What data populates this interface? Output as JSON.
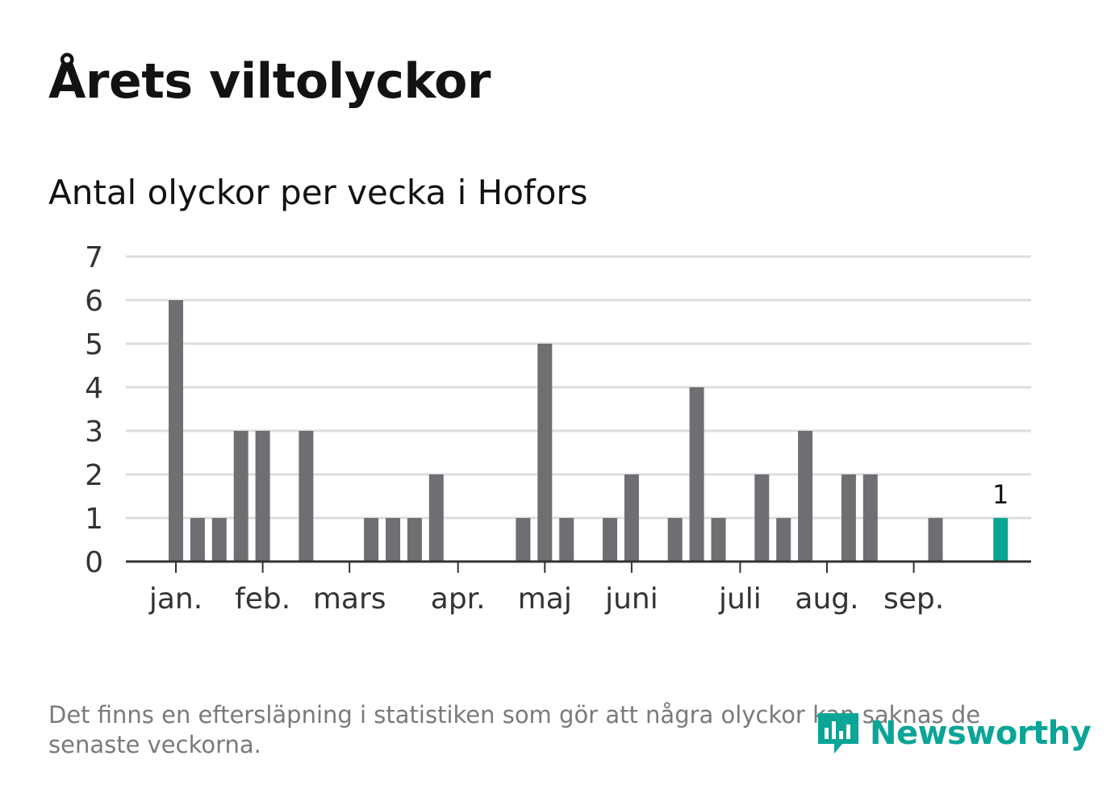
{
  "title": "Årets viltolyckor",
  "subtitle": "Antal olyckor per vecka i Hofors",
  "footnote": "Det finns en eftersläpning i statistiken som gör att några olyckor kan saknas de senaste veckorna.",
  "logo_text": "Newsworthy",
  "logo_icon": "bar-chart-speech-bubble-icon",
  "colors": {
    "bar": "#6f6e73",
    "highlight": "#0aa596",
    "grid": "#dddddd",
    "axis": "#333333",
    "text": "#121212",
    "tick_text": "#333333"
  },
  "chart_data": {
    "type": "bar",
    "title": "Antal olyckor per vecka i Hofors",
    "xlabel": "",
    "ylabel": "",
    "ylim": [
      0,
      7
    ],
    "yticks": [
      0,
      1,
      2,
      3,
      4,
      5,
      6,
      7
    ],
    "grid": true,
    "week_start": 1,
    "weeks": [
      1,
      2,
      3,
      4,
      5,
      6,
      7,
      8,
      9,
      10,
      11,
      12,
      13,
      14,
      15,
      16,
      17,
      18,
      19,
      20,
      21,
      22,
      23,
      24,
      25,
      26,
      27,
      28,
      29,
      30,
      31,
      32,
      33,
      34,
      35,
      36,
      37,
      38,
      39
    ],
    "values": [
      6,
      1,
      1,
      3,
      3,
      0,
      3,
      0,
      0,
      1,
      1,
      1,
      2,
      0,
      0,
      0,
      1,
      5,
      1,
      0,
      1,
      2,
      0,
      1,
      4,
      1,
      0,
      2,
      1,
      3,
      0,
      2,
      2,
      0,
      0,
      1,
      0,
      0,
      1
    ],
    "highlight_index": 38,
    "highlight_label": "1",
    "month_labels": [
      {
        "label": "jan.",
        "week": 1
      },
      {
        "label": "feb.",
        "week": 5
      },
      {
        "label": "mars",
        "week": 9
      },
      {
        "label": "apr.",
        "week": 14
      },
      {
        "label": "maj",
        "week": 18
      },
      {
        "label": "juni",
        "week": 22
      },
      {
        "label": "juli",
        "week": 27
      },
      {
        "label": "aug.",
        "week": 31
      },
      {
        "label": "sep.",
        "week": 35
      }
    ]
  }
}
